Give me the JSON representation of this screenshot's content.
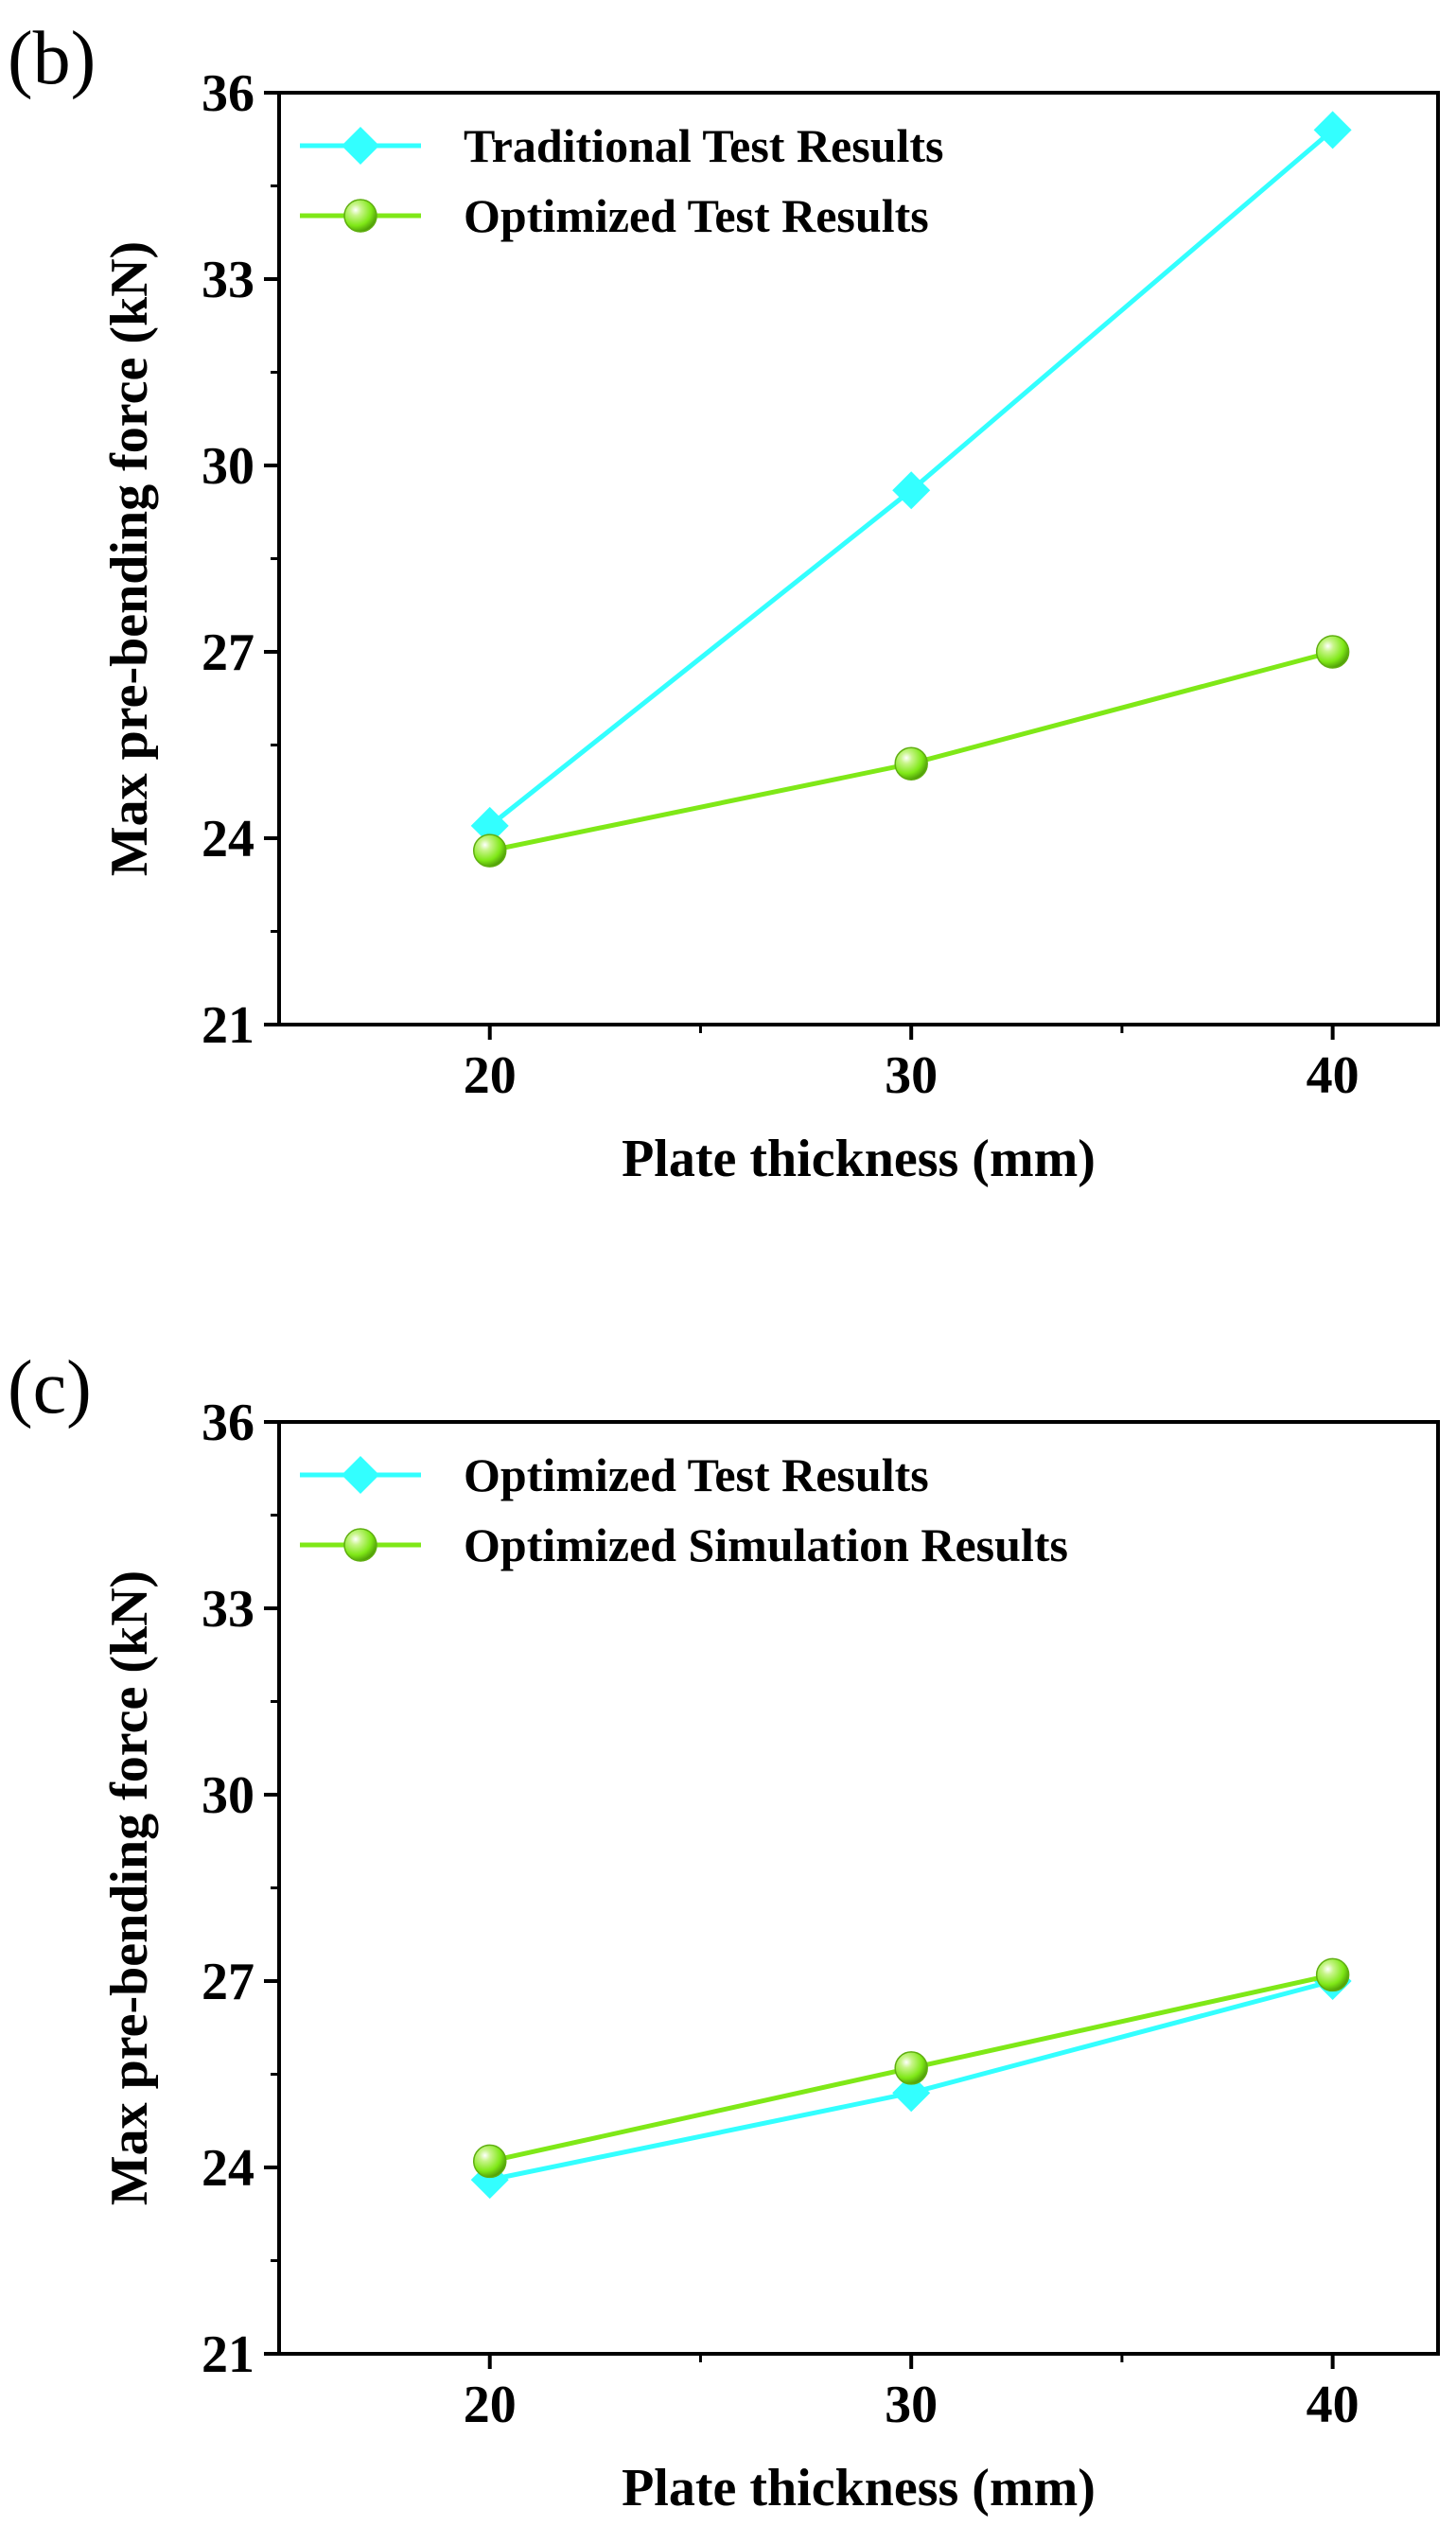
{
  "chart_data": [
    {
      "type": "line",
      "panel_label": "(b)",
      "xlabel": "Plate thickness (mm)",
      "ylabel": "Max pre-bending force (kN)",
      "x": [
        20,
        30,
        40
      ],
      "xticks": [
        "20",
        "30",
        "40"
      ],
      "xlim": [
        15,
        42.5
      ],
      "ylim": [
        21,
        36
      ],
      "yticks": [
        "21",
        "24",
        "27",
        "30",
        "33",
        "36"
      ],
      "legend_position": "top-left",
      "grid": false,
      "series": [
        {
          "name": "Traditional Test Results",
          "values": [
            24.2,
            29.6,
            35.4
          ],
          "color": "#33FFFF",
          "marker": "diamond"
        },
        {
          "name": "Optimized  Test Results",
          "values": [
            23.8,
            25.2,
            27.0
          ],
          "color": "#7FE817",
          "marker": "circle"
        }
      ]
    },
    {
      "type": "line",
      "panel_label": "(c)",
      "xlabel": "Plate thickness (mm)",
      "ylabel": "Max pre-bending force (kN)",
      "x": [
        20,
        30,
        40
      ],
      "xticks": [
        "20",
        "30",
        "40"
      ],
      "xlim": [
        15,
        42.5
      ],
      "ylim": [
        21,
        36
      ],
      "yticks": [
        "21",
        "24",
        "27",
        "30",
        "33",
        "36"
      ],
      "legend_position": "top-left",
      "grid": false,
      "series": [
        {
          "name": "Optimized Test Results",
          "values": [
            23.8,
            25.2,
            27.0
          ],
          "color": "#33FFFF",
          "marker": "diamond"
        },
        {
          "name": "Optimized Simulation Results",
          "values": [
            24.1,
            25.6,
            27.1
          ],
          "color": "#7FE817",
          "marker": "circle"
        }
      ]
    }
  ]
}
